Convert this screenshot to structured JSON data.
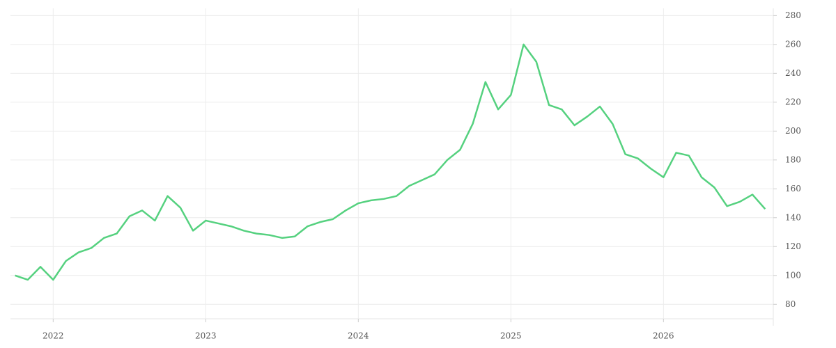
{
  "chart_data": {
    "type": "line",
    "x": [
      "2021-10",
      "2021-11",
      "2021-12",
      "2022-01",
      "2022-02",
      "2022-03",
      "2022-04",
      "2022-05",
      "2022-06",
      "2022-07",
      "2022-08",
      "2022-09",
      "2022-10",
      "2022-11",
      "2022-12",
      "2023-01",
      "2023-02",
      "2023-03",
      "2023-04",
      "2023-05",
      "2023-06",
      "2023-07",
      "2023-08",
      "2023-09",
      "2023-10",
      "2023-11",
      "2023-12",
      "2024-01",
      "2024-02",
      "2024-03",
      "2024-04",
      "2024-05",
      "2024-06",
      "2024-07",
      "2024-08",
      "2024-09",
      "2024-10",
      "2024-11",
      "2024-12",
      "2025-01",
      "2025-02",
      "2025-03",
      "2025-04",
      "2025-05",
      "2025-06",
      "2025-07",
      "2025-08",
      "2025-09",
      "2025-10",
      "2025-11",
      "2025-12",
      "2026-01",
      "2026-02",
      "2026-03",
      "2026-04",
      "2026-05",
      "2026-06",
      "2026-07",
      "2026-08",
      "2026-09"
    ],
    "series": [
      {
        "color": "#55d17f",
        "values": [
          100,
          97,
          106,
          97,
          110,
          116,
          119,
          126,
          129,
          141,
          145,
          138,
          155,
          147,
          131,
          138,
          136,
          134,
          131,
          129,
          128,
          126,
          127,
          134,
          137,
          139,
          145,
          150,
          152,
          153,
          155,
          162,
          166,
          170,
          180,
          187,
          205,
          234,
          215,
          225,
          260,
          248,
          218,
          215,
          204,
          210,
          217,
          205,
          184,
          181,
          174,
          168,
          185,
          183,
          168,
          161,
          148,
          151,
          156,
          146
        ]
      }
    ],
    "xlim": [
      2021.72,
      2026.72
    ],
    "xticks": [
      2022,
      2023,
      2024,
      2025,
      2026
    ],
    "ylim": [
      70,
      285
    ],
    "yticks": [
      80,
      100,
      120,
      140,
      160,
      180,
      200,
      220,
      240,
      260,
      280
    ],
    "grid": true
  }
}
